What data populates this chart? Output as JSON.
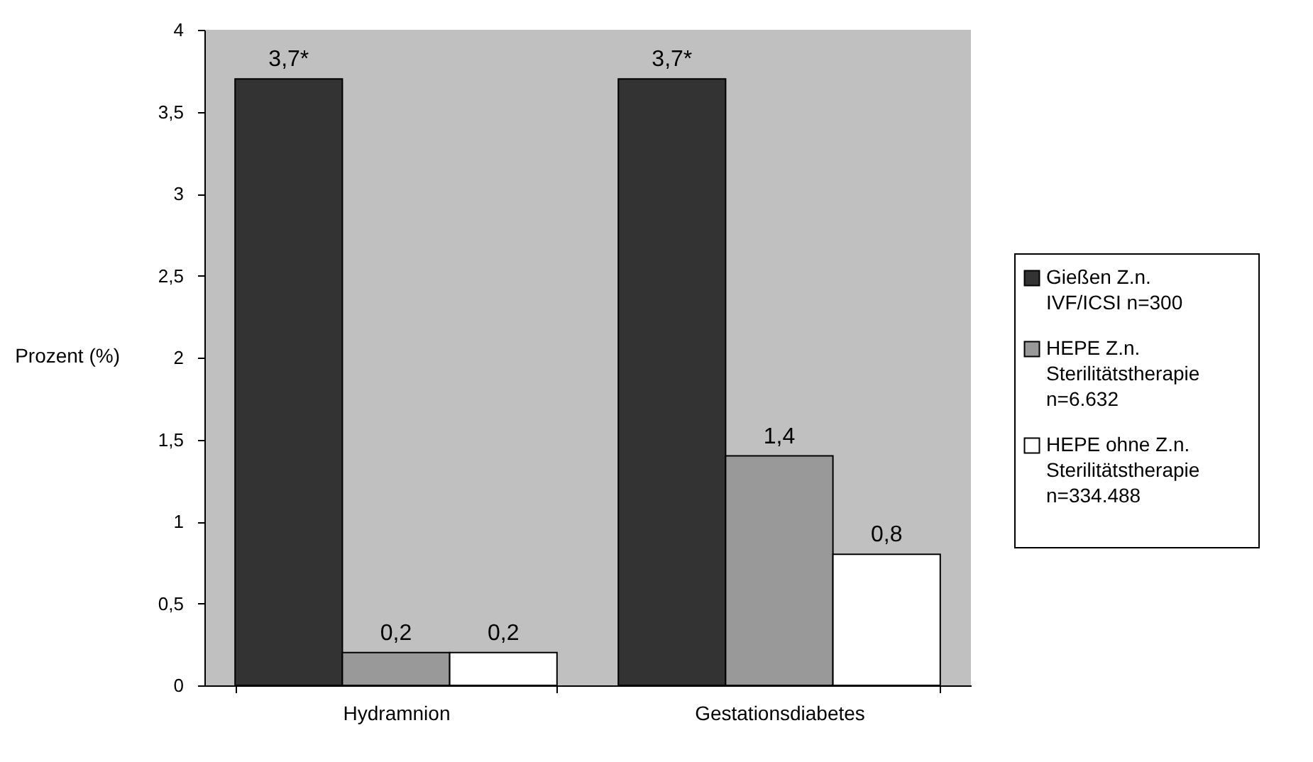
{
  "chart_data": {
    "type": "bar",
    "ylabel": "Prozent (%)",
    "categories": [
      "Hydramnion",
      "Gestationsdiabetes"
    ],
    "series": [
      {
        "name": "Gießen Z.n.\nIVF/ICSI  n=300",
        "color": "#333333",
        "values": [
          3.7,
          3.7
        ],
        "value_labels": [
          "3,7*",
          "3,7*"
        ]
      },
      {
        "name": "HEPE Z.n.\nSterilitätstherapie\nn=6.632",
        "color": "#999999",
        "values": [
          0.2,
          1.4
        ],
        "value_labels": [
          "0,2",
          "1,4"
        ]
      },
      {
        "name": "HEPE ohne Z.n.\nSterilitätstherapie\nn=334.488",
        "color": "#ffffff",
        "values": [
          0.2,
          0.8
        ],
        "value_labels": [
          "0,2",
          "0,8"
        ]
      }
    ],
    "ylim": [
      0,
      4
    ],
    "yticks": [
      0,
      {
        "value": 0.5,
        "label": "0,5"
      },
      1,
      {
        "value": 1.5,
        "label": "1,5"
      },
      2,
      {
        "value": 2.5,
        "label": "2,5"
      },
      3,
      {
        "value": 3.5,
        "label": "3,5"
      },
      4
    ],
    "grid": false,
    "legend": "right"
  }
}
